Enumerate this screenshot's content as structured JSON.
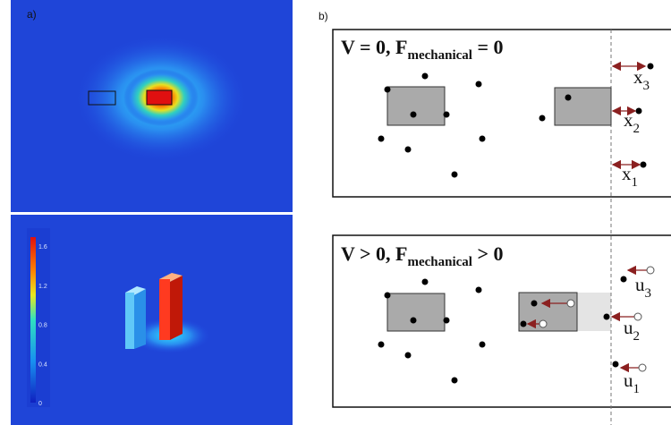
{
  "panels": [
    {
      "label": "a)"
    },
    {
      "label": "b)"
    }
  ],
  "colorbar": {
    "ticks": [
      1.6,
      1.2,
      0.8,
      0.4,
      0
    ]
  },
  "boxes": [
    {
      "title": {
        "main": "V = 0, F",
        "sub": "mechanical",
        "rest": " = 0"
      },
      "labels": [
        {
          "base": "x",
          "sub": "3"
        },
        {
          "base": "x",
          "sub": "2"
        },
        {
          "base": "x",
          "sub": "1"
        }
      ]
    },
    {
      "title": {
        "main": "V > 0, F",
        "sub": "mechanical",
        "rest": " > 0"
      },
      "labels": [
        {
          "base": "u",
          "sub": "3"
        },
        {
          "base": "u",
          "sub": "2"
        },
        {
          "base": "u",
          "sub": "1"
        }
      ]
    }
  ]
}
